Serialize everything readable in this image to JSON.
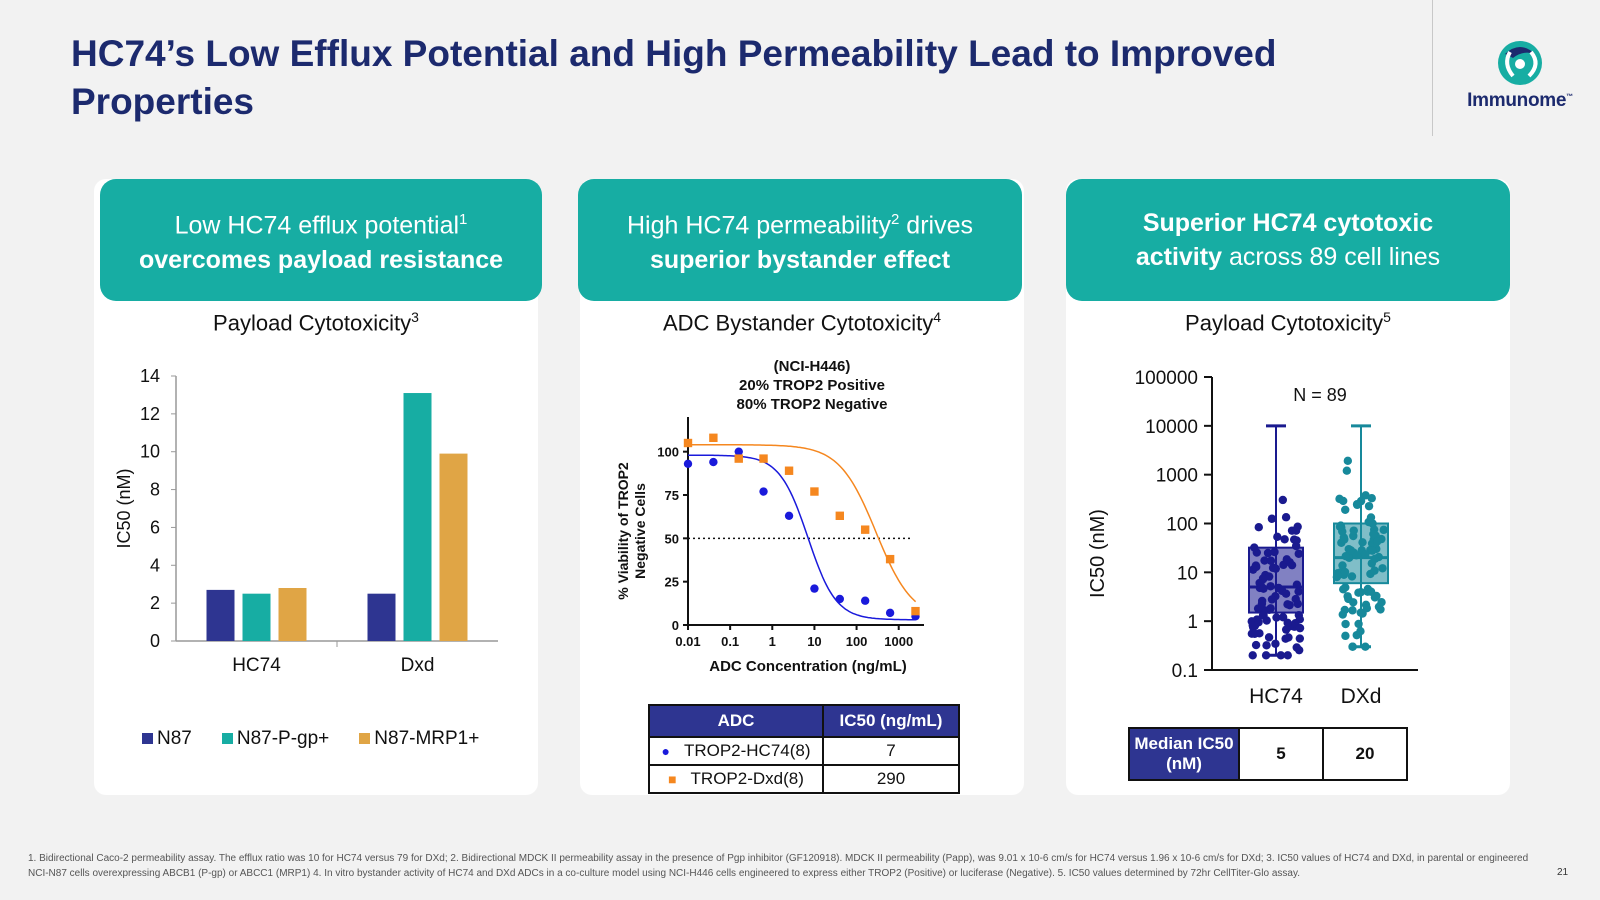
{
  "slide": {
    "title": "HC74’s Low Efflux Potential and High Permeability Lead to Improved Properties",
    "logo_text": "Immunome",
    "logo_tm": "™",
    "page_number": "21",
    "footnote": "1. Bidirectional Caco-2 permeability assay. The efflux ratio was 10 for HC74 versus 79 for DXd; 2. Bidirectional MDCK II permeability assay in the presence of Pgp inhibitor (GF120918). MDCK II permeability (Papp), was 9.01 x 10-6 cm/s for HC74 versus 1.96 x 10-6 cm/s for DXd; 3. IC50 values of HC74 and DXd, in parental or engineered NCI-N87 cells overexpressing ABCB1 (P-gp) or ABCC1 (MRP1) 4. In vitro bystander activity of HC74 and DXd ADCs in a co-culture model using NCI-H446 cells engineered to express either TROP2 (Positive) or luciferase (Negative). 5. IC50 values determined by 72hr CellTiter-Glo assay.",
    "colors": {
      "navy": "#1c2a6e",
      "teal": "#17ada3"
    }
  },
  "panels": [
    {
      "head_plain": "Low HC74 efflux potential",
      "head_sup": "1",
      "head_bold": "overcomes payload resistance",
      "subtitle": "Payload Cytotoxicity",
      "subtitle_sup": "3"
    },
    {
      "head_plain": "High HC74 permeability",
      "head_sup": "2",
      "head_plain2": " drives",
      "head_bold": "superior bystander effect",
      "subtitle": "ADC Bystander Cytotoxicity",
      "subtitle_sup": "4"
    },
    {
      "head_bold1": "Superior HC74 cytotoxic",
      "head_bold2": "activity",
      "head_plain": " across 89 cell lines",
      "subtitle": "Payload Cytotoxicity",
      "subtitle_sup": "5"
    }
  ],
  "chart_data": [
    {
      "type": "bar",
      "ylabel": "IC50 (nM)",
      "ylim": [
        0,
        14
      ],
      "yticks": [
        "0",
        "2",
        "4",
        "6",
        "8",
        "10",
        "12",
        "14"
      ],
      "categories": [
        "HC74",
        "Dxd"
      ],
      "series": [
        {
          "name": "N87",
          "color": "#2e3591",
          "values": [
            2.7,
            2.5
          ]
        },
        {
          "name": "N87-P-gp+",
          "color": "#17ada3",
          "values": [
            2.5,
            13.1
          ]
        },
        {
          "name": "N87-MRP1+",
          "color": "#e0a545",
          "values": [
            2.8,
            9.9
          ]
        }
      ]
    },
    {
      "type": "scatter",
      "title_lines": [
        "(NCI-H446)",
        "20% TROP2 Positive",
        "80% TROP2 Negative"
      ],
      "xlabel": "ADC Concentration (ng/mL)",
      "ylabel_lines": [
        "% Viability of TROP2",
        "Negative Cells"
      ],
      "x_scale": "log",
      "xticks": [
        "0.01",
        "0.1",
        "1",
        "10",
        "100",
        "1000"
      ],
      "yticks": [
        "0",
        "25",
        "50",
        "75",
        "100"
      ],
      "ylim": [
        0,
        120
      ],
      "reference_line_y": 50,
      "series": [
        {
          "name": "TROP2-HC74(8)",
          "color": "#1a1adb",
          "marker": "circle",
          "x": [
            0.01,
            0.04,
            0.16,
            0.62,
            2.5,
            10,
            40,
            160,
            625,
            2500
          ],
          "y": [
            93,
            94,
            100,
            77,
            63,
            21,
            15,
            14,
            7,
            5
          ],
          "fit_ic50": 7
        },
        {
          "name": "TROP2-Dxd(8)",
          "color": "#f5871f",
          "marker": "square",
          "x": [
            0.01,
            0.04,
            0.16,
            0.62,
            2.5,
            10,
            40,
            160,
            625,
            2500
          ],
          "y": [
            105,
            108,
            96,
            96,
            89,
            77,
            63,
            55,
            38,
            8
          ],
          "fit_ic50": 290
        }
      ],
      "table": {
        "headers": [
          "ADC",
          "IC50 (ng/mL)"
        ],
        "rows": [
          [
            "TROP2-HC74(8)",
            "7"
          ],
          [
            "TROP2-Dxd(8)",
            "290"
          ]
        ]
      }
    },
    {
      "type": "box",
      "ylabel": "IC50 (nM)",
      "y_scale": "log",
      "yticks": [
        "0.1",
        "1",
        "10",
        "100",
        "1000",
        "10000",
        "100000"
      ],
      "annotation": "N = 89",
      "categories": [
        "HC74",
        "DXd"
      ],
      "boxes": [
        {
          "name": "HC74",
          "color": "#1a1a8f",
          "min": 0.2,
          "q1": 1.5,
          "median": 5,
          "q3": 32,
          "max": 10000
        },
        {
          "name": "DXd",
          "color": "#17899b",
          "min": 0.3,
          "q1": 6,
          "median": 20,
          "q3": 100,
          "max": 10000
        }
      ],
      "table": {
        "header": "Median IC50 (nM)",
        "values": [
          "5",
          "20"
        ]
      }
    }
  ]
}
